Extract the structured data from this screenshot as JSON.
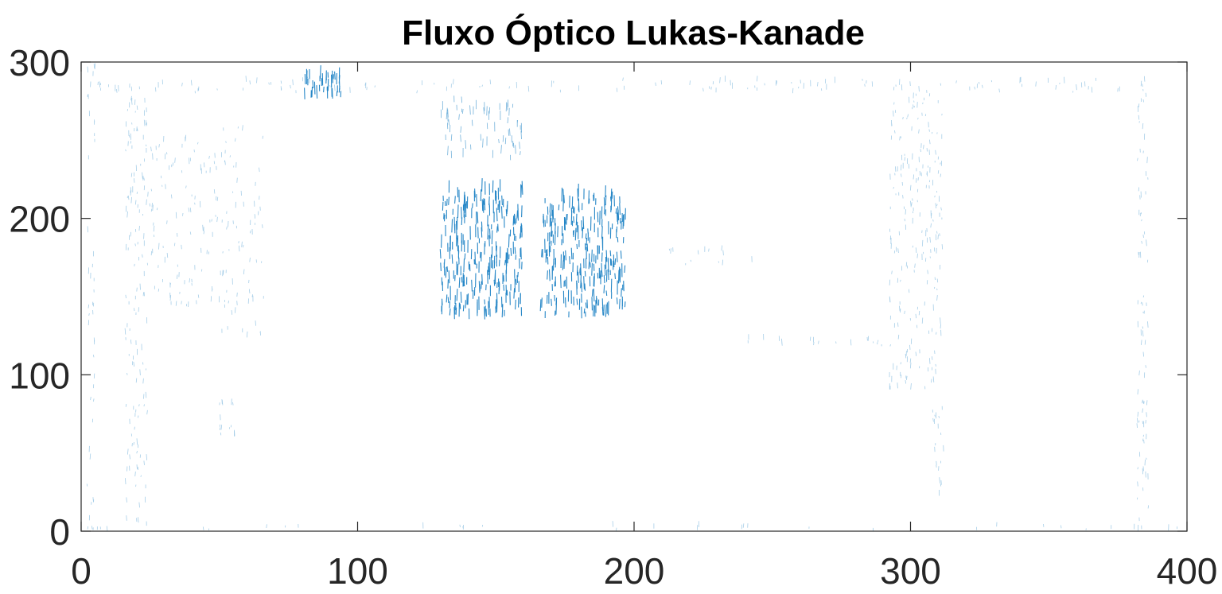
{
  "chart_data": {
    "type": "quiver",
    "title": "Fluxo Óptico Lukas-Kanade",
    "xlabel": "",
    "ylabel": "",
    "xlim": [
      0,
      400
    ],
    "ylim": [
      0,
      300
    ],
    "xticks": [
      0,
      100,
      200,
      300,
      400
    ],
    "yticks": [
      0,
      100,
      200,
      300
    ],
    "grid": false,
    "box": true,
    "series": [
      {
        "color": "#0072BD",
        "clusters": [
          {
            "x": [
              130,
              160
            ],
            "y": [
              135,
              218
            ],
            "density": 0.55,
            "intensity": "high"
          },
          {
            "x": [
              166,
              197
            ],
            "y": [
              136,
              214
            ],
            "density": 0.55,
            "intensity": "high"
          },
          {
            "x": [
              80,
              94
            ],
            "y": [
              276,
              290
            ],
            "density": 0.8,
            "intensity": "high"
          },
          {
            "x": [
              130,
              160
            ],
            "y": [
              235,
              275
            ],
            "density": 0.25,
            "intensity": "medium"
          },
          {
            "x": [
              16,
              24
            ],
            "y": [
              2,
              285
            ],
            "density": 0.3,
            "intensity": "low"
          },
          {
            "x": [
              24,
              50
            ],
            "y": [
              140,
              250
            ],
            "density": 0.18,
            "intensity": "low"
          },
          {
            "x": [
              50,
              66
            ],
            "y": [
              120,
              260
            ],
            "density": 0.15,
            "intensity": "low"
          },
          {
            "x": [
              3,
              385
            ],
            "y": [
              280,
              288
            ],
            "density": 0.2,
            "intensity": "low"
          },
          {
            "x": [
              292,
              312
            ],
            "y": [
              90,
              285
            ],
            "density": 0.28,
            "intensity": "low"
          },
          {
            "x": [
              382,
              386
            ],
            "y": [
              0,
              285
            ],
            "density": 0.35,
            "intensity": "low"
          },
          {
            "x": [
              2,
              400
            ],
            "y": [
              0,
              3
            ],
            "density": 0.12,
            "intensity": "low"
          },
          {
            "x": [
              2,
              5
            ],
            "y": [
              0,
              300
            ],
            "density": 0.2,
            "intensity": "low"
          },
          {
            "x": [
              240,
              290
            ],
            "y": [
              118,
              123
            ],
            "density": 0.25,
            "intensity": "low"
          },
          {
            "x": [
              210,
              245
            ],
            "y": [
              170,
              180
            ],
            "density": 0.1,
            "intensity": "low"
          },
          {
            "x": [
              50,
              56
            ],
            "y": [
              60,
              82
            ],
            "density": 0.3,
            "intensity": "low"
          },
          {
            "x": [
              308,
              312
            ],
            "y": [
              20,
              80
            ],
            "density": 0.3,
            "intensity": "low"
          }
        ]
      }
    ]
  }
}
